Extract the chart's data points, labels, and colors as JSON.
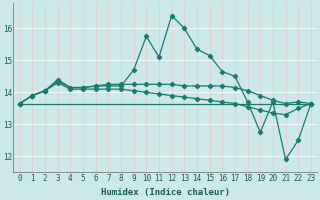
{
  "xlabel": "Humidex (Indice chaleur)",
  "ylabel": "",
  "bg_color": "#cce8e8",
  "grid_color": "#e8c8c8",
  "line_color": "#1a7a6e",
  "xlim": [
    -0.5,
    23.5
  ],
  "ylim": [
    11.5,
    16.8
  ],
  "yticks": [
    12,
    13,
    14,
    15,
    16
  ],
  "xticks": [
    0,
    1,
    2,
    3,
    4,
    5,
    6,
    7,
    8,
    9,
    10,
    11,
    12,
    13,
    14,
    15,
    16,
    17,
    18,
    19,
    20,
    21,
    22,
    23
  ],
  "series": [
    {
      "x": [
        0,
        1,
        2,
        3,
        4,
        5,
        6,
        7,
        8,
        9,
        10,
        11,
        12,
        13,
        14,
        15,
        16,
        17,
        18,
        19,
        20,
        21,
        22,
        23
      ],
      "y": [
        13.65,
        13.9,
        14.05,
        14.4,
        14.15,
        14.15,
        14.2,
        14.2,
        14.2,
        14.7,
        15.75,
        15.1,
        16.4,
        16.0,
        15.35,
        15.15,
        14.65,
        14.5,
        13.7,
        12.75,
        13.7,
        11.9,
        12.5,
        13.65
      ]
    },
    {
      "x": [
        0,
        1,
        2,
        3,
        4,
        5,
        6,
        7,
        8,
        9,
        10,
        11,
        12,
        13,
        14,
        15,
        16,
        17,
        18,
        19,
        20,
        21,
        22,
        23
      ],
      "y": [
        13.65,
        13.9,
        14.05,
        14.35,
        14.15,
        14.15,
        14.2,
        14.25,
        14.25,
        14.25,
        14.25,
        14.25,
        14.25,
        14.2,
        14.2,
        14.2,
        14.2,
        14.15,
        14.05,
        13.9,
        13.75,
        13.65,
        13.7,
        13.65
      ]
    },
    {
      "x": [
        0,
        1,
        2,
        3,
        4,
        5,
        6,
        7,
        8,
        9,
        10,
        11,
        12,
        13,
        14,
        15,
        16,
        17,
        18,
        19,
        20,
        21,
        22,
        23
      ],
      "y": [
        13.65,
        13.9,
        14.05,
        14.3,
        14.1,
        14.1,
        14.1,
        14.1,
        14.1,
        14.05,
        14.0,
        13.95,
        13.9,
        13.85,
        13.8,
        13.75,
        13.7,
        13.65,
        13.55,
        13.45,
        13.35,
        13.3,
        13.5,
        13.65
      ]
    },
    {
      "x": [
        0,
        23
      ],
      "y": [
        13.65,
        13.65
      ],
      "no_markers": true
    }
  ]
}
